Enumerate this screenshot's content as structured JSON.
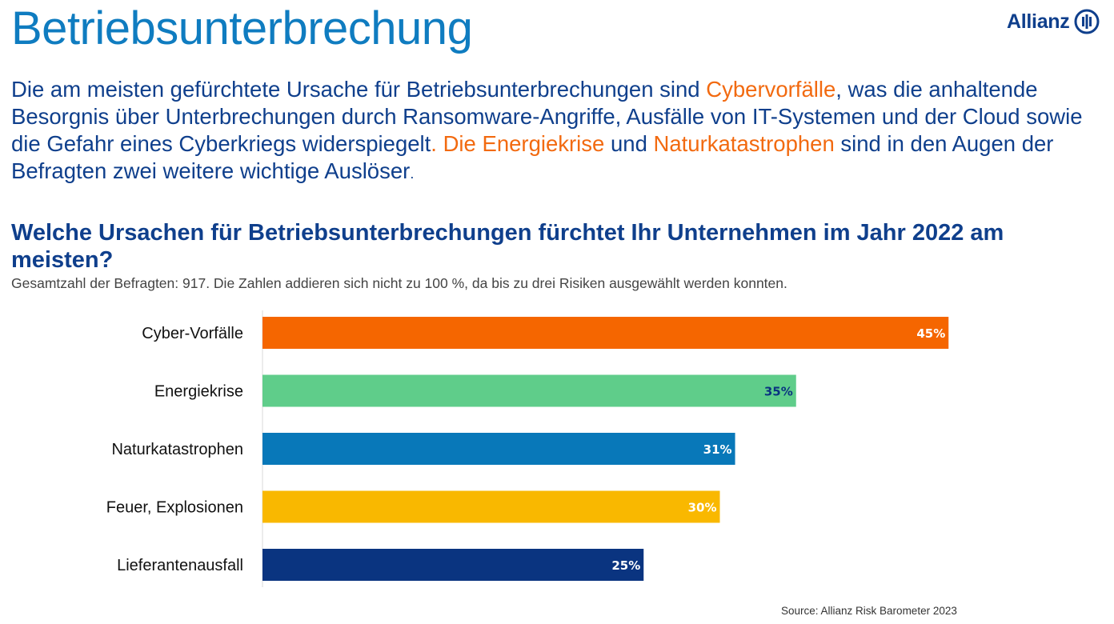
{
  "header": {
    "title": "Betriebsunterbrechung",
    "logo_text": "Allianz",
    "logo_icon": "allianz-eagle-icon",
    "brand_color": "#0f3f8c"
  },
  "intro": {
    "part1": "Die am meisten gefürchtete Ursache für Betriebsunterbrechungen sind ",
    "highlight1": "Cybervorfälle",
    "part2": ", was die anhaltende Besorgnis über Unterbrechungen durch Ransomware-Angriffe, Ausfälle von IT-Systemen und der Cloud sowie die Gefahr eines Cyberkriegs widerspiegelt",
    "highlight2": ". Die Energiekrise",
    "part3": " und ",
    "highlight3": "Naturkatastrophen",
    "part4": " sind in den Augen der Befragten zwei weitere wichtige Auslöser",
    "part5": ".",
    "accent_color": "#f26a10"
  },
  "chart_data": {
    "type": "bar",
    "orientation": "horizontal",
    "title": "Welche Ursachen für Betriebsunterbrechungen fürchtet Ihr Unternehmen im Jahr 2022 am meisten?",
    "subtitle": "Gesamtzahl der Befragten: 917. Die Zahlen addieren sich nicht zu 100 %, da bis zu drei Risiken ausgewählt werden konnten.",
    "categories": [
      "Cyber-Vorfälle",
      "Energiekrise",
      "Naturkatastrophen",
      "Feuer, Explosionen",
      "Lieferantenausfall"
    ],
    "values": [
      45,
      35,
      31,
      30,
      25
    ],
    "value_labels": [
      "45%",
      "35%",
      "31%",
      "30%",
      "25%"
    ],
    "colors": [
      "#f56600",
      "#5fcd8a",
      "#0878b9",
      "#f9b800",
      "#0a3480"
    ],
    "label_colors": [
      "#ffffff",
      "#0a3480",
      "#ffffff",
      "#ffffff",
      "#ffffff"
    ],
    "xlim": [
      0,
      45
    ],
    "grid": false,
    "legend": "none"
  },
  "footer": {
    "source": "Source: Allianz Risk Barometer 2023"
  }
}
